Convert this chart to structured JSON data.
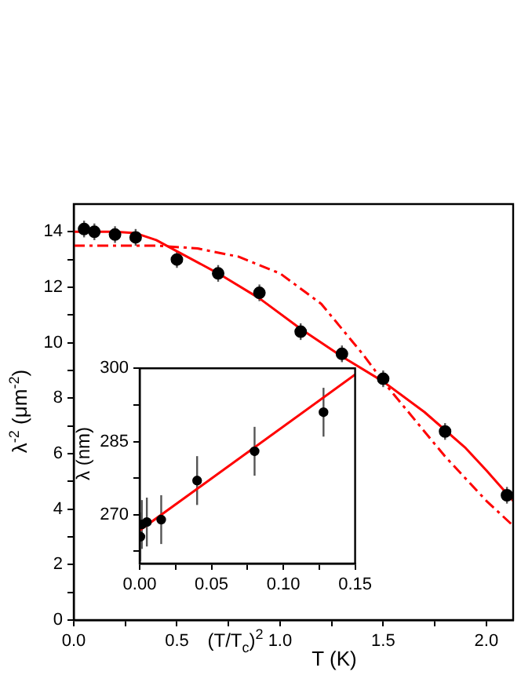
{
  "chart_data": [
    {
      "type": "scatter",
      "xlabel": "T (K)",
      "ylabel": "λ$^{-2}$ (μm$^{-2}$)",
      "xlim": [
        0,
        2.13
      ],
      "ylim": [
        0,
        15
      ],
      "xticks": [
        {
          "value": 0,
          "label": "0.0"
        },
        {
          "value": 0.25,
          "label": null
        },
        {
          "value": 0.5,
          "label": "0.5"
        },
        {
          "value": 0.75,
          "label": null
        },
        {
          "value": 1,
          "label": "1.0"
        },
        {
          "value": 1.25,
          "label": null
        },
        {
          "value": 1.5,
          "label": "1.5"
        },
        {
          "value": 1.75,
          "label": null
        },
        {
          "value": 2,
          "label": "2.0"
        }
      ],
      "yticks": [
        0,
        {
          "value": 1,
          "label": null
        },
        2,
        {
          "value": 3,
          "label": null
        },
        4,
        {
          "value": 5,
          "label": null
        },
        6,
        {
          "value": 7,
          "label": null
        },
        8,
        {
          "value": 9,
          "label": null
        },
        10,
        {
          "value": 11,
          "label": null
        },
        12,
        {
          "value": 13,
          "label": null
        },
        14
      ],
      "grid": false,
      "legend": false,
      "series": [
        {
          "type": "scatter",
          "marker": "circle",
          "color": "#000000",
          "x": [
            0.05,
            0.1,
            0.2,
            0.3,
            0.5,
            0.7,
            0.9,
            1.1,
            1.3,
            1.5,
            1.8,
            2.1
          ],
          "values": [
            14.1,
            14.0,
            13.9,
            13.8,
            13.0,
            12.5,
            11.8,
            10.4,
            9.6,
            8.7,
            6.8,
            4.5
          ],
          "errors": [
            0.3,
            0.3,
            0.3,
            0.3,
            0.3,
            0.3,
            0.3,
            0.3,
            0.3,
            0.3,
            0.3,
            0.3
          ]
        },
        {
          "type": "line",
          "color": "#ff0000",
          "line_style": "solid",
          "x": [
            0,
            0.2,
            0.3,
            0.4,
            0.5,
            0.7,
            0.9,
            1.1,
            1.3,
            1.5,
            1.7,
            1.9,
            2.0,
            2.13
          ],
          "values": [
            14,
            14,
            13.95,
            13.7,
            13.3,
            12.5,
            11.6,
            10.5,
            9.5,
            8.6,
            7.5,
            6.2,
            5.4,
            4.3
          ]
        },
        {
          "type": "line",
          "color": "#ff0000",
          "line_style": "dashed",
          "x": [
            0,
            0.4,
            0.6,
            0.8,
            1.0,
            1.2,
            1.4,
            1.5,
            1.6,
            1.8,
            2.0,
            2.13
          ],
          "values": [
            13.5,
            13.5,
            13.4,
            13.1,
            12.5,
            11.4,
            9.6,
            8.6,
            7.7,
            5.9,
            4.3,
            3.4
          ]
        }
      ]
    },
    {
      "type": "scatter",
      "xlabel": "(T/T$_{c}$)$^{2}$",
      "ylabel": "λ (nm)",
      "xlim": [
        0,
        0.15
      ],
      "ylim": [
        260,
        300
      ],
      "xticks": [
        {
          "value": 0,
          "label": "0.00"
        },
        {
          "value": 0.025,
          "label": null
        },
        {
          "value": 0.05,
          "label": "0.05"
        },
        {
          "value": 0.075,
          "label": null
        },
        {
          "value": 0.1,
          "label": "0.10"
        },
        {
          "value": 0.125,
          "label": null
        },
        {
          "value": 0.15,
          "label": "0.15"
        }
      ],
      "yticks": [
        {
          "value": 262.5,
          "label": null
        },
        270,
        {
          "value": 277.5,
          "label": null
        },
        285,
        {
          "value": 292.5,
          "label": null
        },
        300
      ],
      "grid": false,
      "legend": false,
      "series": [
        {
          "type": "scatter",
          "marker": "circle",
          "color": "#000000",
          "x": [
            0.0005,
            0.0015,
            0.005,
            0.015,
            0.04,
            0.08,
            0.128
          ],
          "values": [
            265.5,
            268,
            268.5,
            269,
            277,
            283,
            291
          ],
          "errors": [
            5,
            5,
            5,
            5,
            5,
            5,
            5
          ]
        },
        {
          "type": "line",
          "color": "#ff0000",
          "line_style": "solid",
          "x": [
            0,
            0.15
          ],
          "values": [
            266.8,
            298.7
          ]
        }
      ]
    }
  ]
}
